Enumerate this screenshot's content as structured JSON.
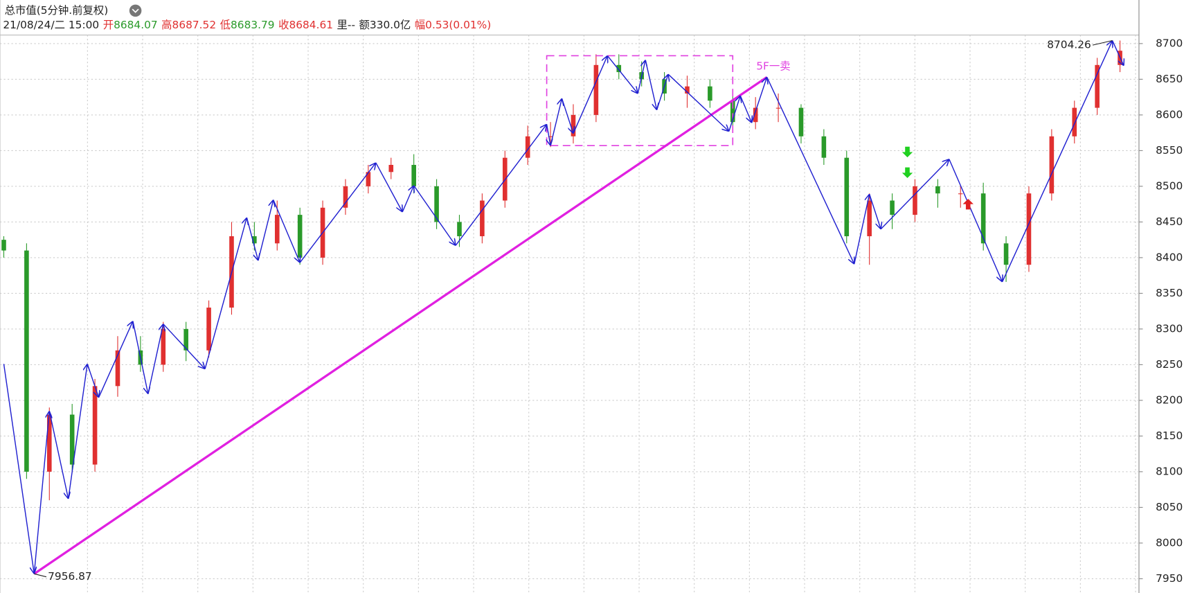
{
  "chart_data": {
    "type": "candlestick",
    "title": "总市值(5分钟.前复权)",
    "info": [
      {
        "text": "21/08/24/二 15:00",
        "color": "#222222"
      },
      {
        "text": "开",
        "color": "#e03030"
      },
      {
        "text": "8684.07",
        "color": "#2a9a2a"
      },
      {
        "text": "高",
        "color": "#e03030"
      },
      {
        "text": "8687.52",
        "color": "#e03030"
      },
      {
        "text": "低",
        "color": "#e03030"
      },
      {
        "text": "8683.79",
        "color": "#2a9a2a"
      },
      {
        "text": "收",
        "color": "#e03030"
      },
      {
        "text": "8684.61",
        "color": "#e03030"
      },
      {
        "text": "里--",
        "color": "#222222"
      },
      {
        "text": "额",
        "color": "#222222"
      },
      {
        "text": "330.0亿",
        "color": "#222222"
      },
      {
        "text": "幅",
        "color": "#e03030"
      },
      {
        "text": "0.53(0.01%)",
        "color": "#e03030"
      }
    ],
    "xlim": [
      0,
      300
    ],
    "ylim": [
      7930,
      8712
    ],
    "yticks": [
      7950,
      8000,
      8050,
      8100,
      8150,
      8200,
      8250,
      8300,
      8350,
      8400,
      8450,
      8500,
      8550,
      8600,
      8650,
      8700
    ],
    "grid": true,
    "up_color": "#e03030",
    "down_color": "#2a9a2a",
    "x": [
      1,
      7,
      13,
      19,
      25,
      31,
      37,
      43,
      49,
      55,
      61,
      67,
      73,
      79,
      85,
      91,
      97,
      103,
      109,
      115,
      121,
      127,
      133,
      139,
      145,
      151,
      157,
      163,
      169,
      175,
      181,
      187,
      193,
      199,
      205,
      211,
      217,
      223,
      229,
      235,
      241,
      247,
      253,
      259,
      265,
      271,
      277,
      283,
      289,
      295
    ],
    "open": [
      8425,
      8410,
      8100,
      8180,
      8110,
      8220,
      8270,
      8250,
      8300,
      8270,
      8330,
      8430,
      8420,
      8460,
      8400,
      8470,
      8500,
      8520,
      8530,
      8500,
      8450,
      8430,
      8480,
      8540,
      8570,
      8570,
      8600,
      8670,
      8660,
      8650,
      8630,
      8640,
      8620,
      8590,
      8610,
      8610,
      8570,
      8540,
      8430,
      8480,
      8460,
      8500,
      8490,
      8490,
      8420,
      8390,
      8490,
      8570,
      8610,
      8670
    ],
    "high": [
      8430,
      8420,
      8190,
      8195,
      8230,
      8290,
      8290,
      8310,
      8310,
      8340,
      8450,
      8450,
      8480,
      8470,
      8480,
      8510,
      8530,
      8540,
      8545,
      8510,
      8460,
      8490,
      8550,
      8585,
      8590,
      8615,
      8685,
      8685,
      8675,
      8660,
      8655,
      8650,
      8630,
      8625,
      8630,
      8615,
      8580,
      8550,
      8490,
      8490,
      8510,
      8510,
      8500,
      8505,
      8430,
      8500,
      8580,
      8620,
      8680,
      8704.26
    ],
    "low": [
      8400,
      8090,
      8060,
      8100,
      8100,
      8205,
      8240,
      8240,
      8255,
      8260,
      8320,
      8410,
      8410,
      8390,
      8390,
      8460,
      8490,
      8510,
      8490,
      8440,
      8415,
      8420,
      8470,
      8530,
      8555,
      8560,
      8590,
      8650,
      8640,
      8620,
      8610,
      8610,
      8575,
      8580,
      8590,
      8560,
      8530,
      8420,
      8390,
      8440,
      8450,
      8470,
      8470,
      8410,
      8366,
      8380,
      8480,
      8560,
      8600,
      8660
    ],
    "close": [
      8410,
      8100,
      8180,
      8110,
      8220,
      8270,
      8250,
      8300,
      8270,
      8330,
      8430,
      8420,
      8460,
      8400,
      8470,
      8500,
      8520,
      8530,
      8500,
      8450,
      8430,
      8480,
      8540,
      8570,
      8570,
      8600,
      8670,
      8660,
      8650,
      8630,
      8640,
      8620,
      8590,
      8610,
      8610,
      8570,
      8540,
      8430,
      8480,
      8460,
      8500,
      8490,
      8490,
      8420,
      8390,
      8490,
      8570,
      8610,
      8670,
      8690
    ],
    "zigzag": {
      "color": "#2020d0",
      "x": [
        1,
        9,
        13,
        18,
        23,
        26,
        35,
        39,
        43,
        54,
        65,
        68,
        72,
        79,
        99,
        106,
        109,
        120,
        144,
        145,
        148,
        151,
        160,
        168,
        170,
        173,
        176,
        192,
        195,
        198,
        202,
        225,
        229,
        232,
        250,
        264,
        293,
        296
      ],
      "values": [
        8251,
        7956.87,
        8185,
        8062,
        8251,
        8204,
        8311,
        8209,
        8307,
        8244,
        8456,
        8396,
        8481,
        8393,
        8533,
        8464,
        8501,
        8417,
        8587,
        8557,
        8623,
        8574,
        8683,
        8630,
        8677,
        8607,
        8657,
        8577,
        8627,
        8589,
        8653,
        8391,
        8489,
        8440,
        8538,
        8366,
        8704.26,
        8669
      ]
    },
    "trend_line": {
      "color": "#e020e0",
      "x": [
        9,
        202
      ],
      "values": [
        7956.87,
        8653
      ]
    },
    "box": {
      "color": "#e040e0",
      "x": [
        144,
        193
      ],
      "values": [
        8557,
        8683
      ]
    },
    "annotations": [
      {
        "label": "7956.87",
        "value": 7956.87,
        "x": 9,
        "color": "#222222"
      },
      {
        "label": "8704.26",
        "value": 8704.26,
        "x": 293,
        "color": "#222222"
      },
      {
        "label": "5F一卖",
        "value": 8653,
        "x": 202,
        "color": "#e040e0"
      }
    ],
    "signals": [
      {
        "x": 239,
        "value": 8548,
        "direction": "down",
        "color": "#20d020"
      },
      {
        "x": 239,
        "value": 8519,
        "direction": "down",
        "color": "#20d020"
      },
      {
        "x": 255,
        "value": 8475,
        "direction": "up",
        "color": "#e02020"
      }
    ]
  }
}
